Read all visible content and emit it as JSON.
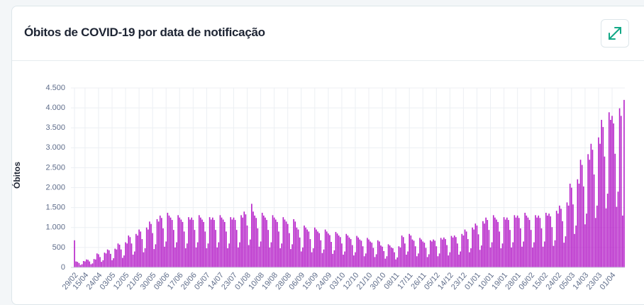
{
  "chart_data": {
    "type": "bar",
    "title": "Óbitos de COVID-19 por data de notificação",
    "y_label": "Óbitos",
    "color": "#b51fc8",
    "grid": true,
    "ylim": [
      0,
      4500
    ],
    "yticks": [
      0,
      500,
      {
        "value": 1000,
        "label": "1.000"
      },
      {
        "value": 1500,
        "label": "1.500"
      },
      {
        "value": 2000,
        "label": "2.000"
      },
      {
        "value": 2500,
        "label": "2.500"
      },
      {
        "value": 3000,
        "label": "3.000"
      },
      {
        "value": 3500,
        "label": "3.500"
      },
      {
        "value": 4000,
        "label": "4.000"
      },
      {
        "value": 4500,
        "label": "4.500"
      }
    ],
    "categories": [
      "29/02",
      null,
      null,
      null,
      null,
      null,
      null,
      "15/04",
      null,
      null,
      null,
      null,
      null,
      null,
      null,
      null,
      "24/04",
      null,
      null,
      null,
      null,
      null,
      null,
      null,
      null,
      "03/05",
      null,
      null,
      null,
      null,
      null,
      null,
      null,
      null,
      "12/05",
      null,
      null,
      null,
      null,
      null,
      null,
      null,
      null,
      "21/05",
      null,
      null,
      null,
      null,
      null,
      null,
      null,
      null,
      "30/05",
      null,
      null,
      null,
      null,
      null,
      null,
      null,
      null,
      "08/06",
      null,
      null,
      null,
      null,
      null,
      null,
      null,
      null,
      "17/06",
      null,
      null,
      null,
      null,
      null,
      null,
      null,
      null,
      "26/06",
      null,
      null,
      null,
      null,
      null,
      null,
      null,
      null,
      "05/07",
      null,
      null,
      null,
      null,
      null,
      null,
      null,
      null,
      "14/07",
      null,
      null,
      null,
      null,
      null,
      null,
      null,
      null,
      "23/07",
      null,
      null,
      null,
      null,
      null,
      null,
      null,
      null,
      "01/08",
      null,
      null,
      null,
      null,
      null,
      null,
      null,
      null,
      "10/08",
      null,
      null,
      null,
      null,
      null,
      null,
      null,
      null,
      "19/08",
      null,
      null,
      null,
      null,
      null,
      null,
      null,
      null,
      "28/08",
      null,
      null,
      null,
      null,
      null,
      null,
      null,
      null,
      "06/09",
      null,
      null,
      null,
      null,
      null,
      null,
      null,
      null,
      "15/09",
      null,
      null,
      null,
      null,
      null,
      null,
      null,
      null,
      "24/09",
      null,
      null,
      null,
      null,
      null,
      null,
      null,
      null,
      "03/10",
      null,
      null,
      null,
      null,
      null,
      null,
      null,
      null,
      "12/10",
      null,
      null,
      null,
      null,
      null,
      null,
      null,
      null,
      "21/10",
      null,
      null,
      null,
      null,
      null,
      null,
      null,
      null,
      "30/10",
      null,
      null,
      null,
      null,
      null,
      null,
      null,
      null,
      "08/11",
      null,
      null,
      null,
      null,
      null,
      null,
      null,
      null,
      "17/11",
      null,
      null,
      null,
      null,
      null,
      null,
      null,
      null,
      "26/11",
      null,
      null,
      null,
      null,
      null,
      null,
      null,
      null,
      "05/12",
      null,
      null,
      null,
      null,
      null,
      null,
      null,
      null,
      "14/12",
      null,
      null,
      null,
      null,
      null,
      null,
      null,
      null,
      "23/12",
      null,
      null,
      null,
      null,
      null,
      null,
      null,
      null,
      "01/01",
      null,
      null,
      null,
      null,
      null,
      null,
      null,
      null,
      "10/01",
      null,
      null,
      null,
      null,
      null,
      null,
      null,
      null,
      "19/01",
      null,
      null,
      null,
      null,
      null,
      null,
      null,
      null,
      "28/01",
      null,
      null,
      null,
      null,
      null,
      null,
      null,
      null,
      "06/02",
      null,
      null,
      null,
      null,
      null,
      null,
      null,
      null,
      "15/02",
      null,
      null,
      null,
      null,
      null,
      null,
      null,
      null,
      "24/02",
      null,
      null,
      null,
      null,
      null,
      null,
      null,
      null,
      "05/03",
      null,
      null,
      null,
      null,
      null,
      null,
      null,
      null,
      "14/03",
      null,
      null,
      null,
      null,
      null,
      null,
      null,
      null,
      "23/03",
      null,
      null,
      null,
      null,
      null,
      null,
      null,
      null,
      "01/04",
      null,
      null,
      null,
      null,
      null,
      null,
      null,
      null
    ],
    "values": [
      680,
      150,
      140,
      110,
      60,
      80,
      160,
      150,
      200,
      190,
      150,
      80,
      100,
      210,
      200,
      350,
      330,
      260,
      140,
      180,
      370,
      350,
      450,
      430,
      340,
      180,
      230,
      470,
      450,
      600,
      570,
      450,
      240,
      300,
      630,
      600,
      800,
      760,
      600,
      320,
      400,
      840,
      800,
      950,
      900,
      710,
      380,
      480,
      1000,
      950,
      1150,
      1090,
      860,
      460,
      580,
      1210,
      1150,
      1300,
      1240,
      980,
      520,
      650,
      1370,
      1300,
      1250,
      1190,
      940,
      500,
      630,
      1310,
      1250,
      1200,
      1140,
      900,
      480,
      600,
      1260,
      1200,
      1250,
      1190,
      940,
      500,
      630,
      1310,
      1250,
      1200,
      1140,
      900,
      480,
      600,
      1260,
      1200,
      1250,
      1190,
      940,
      500,
      630,
      1310,
      1250,
      1200,
      1140,
      900,
      480,
      600,
      1260,
      1200,
      1250,
      1190,
      940,
      500,
      630,
      1310,
      1250,
      1400,
      1330,
      1050,
      560,
      700,
      1595,
      1400,
      1300,
      1240,
      980,
      520,
      650,
      1370,
      1300,
      1250,
      1190,
      940,
      500,
      630,
      1310,
      1250,
      1200,
      1140,
      900,
      480,
      600,
      1260,
      1200,
      1150,
      1090,
      860,
      460,
      580,
      1210,
      1150,
      1000,
      950,
      750,
      400,
      500,
      1050,
      1000,
      950,
      900,
      710,
      380,
      480,
      1000,
      950,
      900,
      860,
      680,
      360,
      450,
      950,
      900,
      850,
      810,
      640,
      340,
      430,
      890,
      850,
      800,
      760,
      600,
      320,
      400,
      840,
      800,
      750,
      710,
      560,
      300,
      380,
      790,
      750,
      700,
      670,
      530,
      280,
      350,
      740,
      700,
      650,
      620,
      490,
      260,
      330,
      680,
      650,
      550,
      520,
      410,
      220,
      280,
      580,
      550,
      500,
      480,
      380,
      200,
      250,
      530,
      500,
      800,
      760,
      600,
      320,
      400,
      840,
      800,
      700,
      670,
      530,
      280,
      350,
      740,
      700,
      650,
      620,
      490,
      260,
      330,
      680,
      650,
      700,
      670,
      530,
      280,
      350,
      740,
      700,
      750,
      710,
      560,
      300,
      380,
      790,
      750,
      800,
      760,
      600,
      320,
      400,
      840,
      800,
      950,
      900,
      710,
      380,
      480,
      1000,
      950,
      1100,
      1050,
      830,
      440,
      550,
      1160,
      1100,
      1250,
      1190,
      940,
      500,
      630,
      1310,
      1250,
      1200,
      1140,
      900,
      480,
      600,
      1260,
      1200,
      1250,
      1190,
      940,
      500,
      630,
      1310,
      1250,
      1300,
      1240,
      980,
      520,
      650,
      1370,
      1300,
      1250,
      1190,
      940,
      500,
      630,
      1310,
      1250,
      1300,
      1240,
      980,
      520,
      650,
      1370,
      1300,
      1350,
      1280,
      1010,
      540,
      680,
      1420,
      1350,
      1550,
      1470,
      1160,
      620,
      780,
      1630,
      1550,
      2100,
      2000,
      1580,
      840,
      1050,
      2210,
      2100,
      2700,
      2570,
      2030,
      1080,
      1350,
      2840,
      2700,
      3100,
      2950,
      2330,
      1240,
      1550,
      3260,
      3100,
      3700,
      3520,
      2780,
      1480,
      1850,
      3890,
      3700,
      3800,
      3610,
      2850,
      1520,
      1900,
      3990,
      3800,
      1300,
      4200
    ]
  }
}
